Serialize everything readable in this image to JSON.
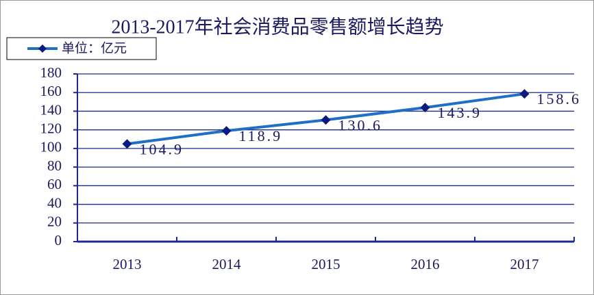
{
  "chart_data": {
    "type": "line",
    "title": "2013-2017年社会消费品零售额增长趋势",
    "categories": [
      "2013",
      "2014",
      "2015",
      "2016",
      "2017"
    ],
    "series": [
      {
        "name": "单位：亿元",
        "color": "#1f6fc5",
        "marker_color": "#0a1a80",
        "values": [
          104.9,
          118.9,
          130.6,
          143.9,
          158.6
        ]
      }
    ],
    "ylim": [
      0,
      180
    ],
    "yticks": [
      0,
      20,
      40,
      60,
      80,
      100,
      120,
      140,
      160,
      180
    ],
    "grid": true,
    "data_labels": true,
    "legend": "top-left"
  }
}
